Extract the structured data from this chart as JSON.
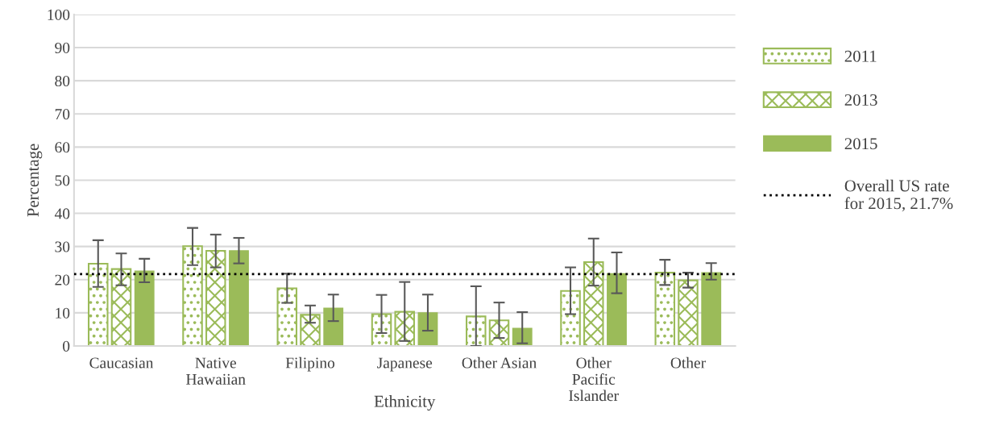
{
  "chart_data": {
    "type": "bar",
    "xlabel": "Ethnicity",
    "ylabel": "Percentage",
    "categories": [
      "Caucasian",
      "Native\nHawaiian",
      "Filipino",
      "Japanese",
      "Other Asian",
      "Other\nPacific\nIslander",
      "Other"
    ],
    "series": [
      {
        "name": "2011",
        "color": "#9bbb59",
        "values": [
          24.8,
          30.1,
          17.4,
          9.6,
          8.9,
          16.6,
          22.1
        ],
        "errors": [
          [
            17.8,
            31.9
          ],
          [
            24.4,
            35.6
          ],
          [
            13.0,
            21.8
          ],
          [
            3.9,
            15.4
          ],
          [
            0.0,
            18.0
          ],
          [
            9.6,
            23.7
          ],
          [
            18.4,
            26.0
          ]
        ]
      },
      {
        "name": "2013",
        "color": "#9bbb59",
        "values": [
          23.2,
          28.7,
          9.4,
          10.3,
          7.7,
          25.3,
          19.8
        ],
        "errors": [
          [
            18.3,
            27.9
          ],
          [
            23.7,
            33.6
          ],
          [
            7.0,
            12.2
          ],
          [
            1.5,
            19.3
          ],
          [
            2.4,
            13.1
          ],
          [
            18.2,
            32.4
          ],
          [
            17.6,
            22.1
          ]
        ]
      },
      {
        "name": "2015",
        "color": "#9bbb59",
        "values": [
          22.6,
          28.7,
          11.4,
          10.0,
          5.3,
          21.8,
          22.1
        ],
        "errors": [
          [
            19.2,
            26.3
          ],
          [
            24.9,
            32.6
          ],
          [
            7.5,
            15.5
          ],
          [
            4.6,
            15.5
          ],
          [
            0.8,
            10.2
          ],
          [
            15.9,
            28.2
          ],
          [
            20.0,
            25.0
          ]
        ]
      }
    ],
    "ylim": [
      0,
      100
    ],
    "yticks": [
      0,
      10,
      20,
      30,
      40,
      50,
      60,
      70,
      80,
      90,
      100
    ],
    "grid": "y",
    "legend": "right",
    "ref_lines": [
      {
        "axis": "y",
        "value": 21.7,
        "label": "Overall US rate\nfor 2015, 21.7%",
        "color": "#000000",
        "line_style": "dotted"
      }
    ]
  }
}
